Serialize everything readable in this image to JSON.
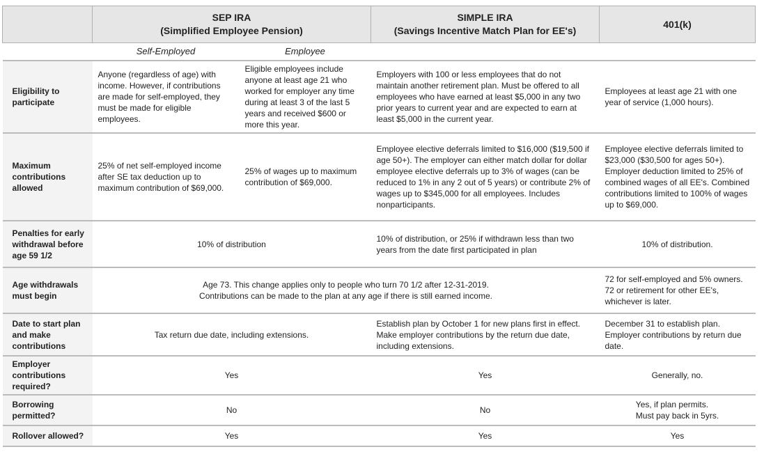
{
  "header": {
    "sep_title": "SEP IRA",
    "sep_subtitle": "(Simplified Employee Pension)",
    "simple_title": "SIMPLE IRA",
    "simple_subtitle": "(Savings Incentive Match Plan for EE's)",
    "k401_title": "401(k)"
  },
  "subheader": [
    "Self-Employed",
    "Employee"
  ],
  "rows": [
    {
      "label": "Eligibility to participate",
      "cells": [
        "Anyone (regardless of age) with income. However, if contributions are made for self-employed, they must be made for eligible employees.",
        "Eligible employees include anyone at least age 21 who worked for employer any time during at least 3 of the last 5 years and received $600 or more this year.",
        "Employers with 100 or less employees that do not maintain another retirement plan. Must be offered to all employees who have earned at least $5,000 in any two prior years to current year and are expected to earn at least $5,000 in the current year.",
        "Employees at least age 21 with one year of service (1,000 hours)."
      ]
    },
    {
      "label": "Maximum contributions allowed",
      "cells": [
        "25% of net self-employed income after SE tax deduction up to maximum contribution of $69,000.",
        "25% of wages up to maximum contribution of $69,000.",
        "Employee elective deferrals limited to $16,000 ($19,500 if age 50+). The employer can either match dollar for dollar employee elective deferrals up to 3% of wages (can be reduced to 1% in any 2 out of 5 years) or contribute 2% of wages up to $345,000 for all employees. Includes nonparticipants.",
        "Employee elective deferrals limited to $23,000 ($30,500 for ages 50+). Employer deduction limited to 25% of combined wages of all EE's. Combined contributions limited to 100% of wages up to $69,000."
      ]
    },
    {
      "label": "Penalties for early withdrawal before age 59 1/2",
      "cells": [
        "10% of distribution",
        "10% of distribution, or 25% if withdrawn less than two years from the date first participated in plan",
        "10% of distribution."
      ]
    },
    {
      "label": "Age withdrawals must begin",
      "cells": [
        [
          "Age 73.  This change applies only to people who turn 70 1/2 after 12-31-2019.",
          "Contributions can be made to the plan at any age if there is still earned income."
        ],
        [
          "72 for self-employed and 5% owners.",
          "72 or retirement for other EE's, whichever is later."
        ]
      ]
    },
    {
      "label": "Date to start plan and make contributions",
      "cells": [
        "Tax return due date, including extensions.",
        "Establish plan by October 1 for new plans first in effect. Make employer contributions by the return due date, including extensions.",
        "December 31 to establish plan. Employer contributions by return due date."
      ]
    },
    {
      "label": "Employer contributions required?",
      "cells": [
        "Yes",
        "Yes",
        "Generally, no."
      ]
    },
    {
      "label": "Borrowing permitted?",
      "cells": [
        "No",
        "No",
        [
          "Yes, if plan permits.",
          "Must pay back in 5yrs."
        ]
      ]
    },
    {
      "label": "Rollover allowed?",
      "cells": [
        "Yes",
        "Yes",
        "Yes"
      ]
    }
  ]
}
